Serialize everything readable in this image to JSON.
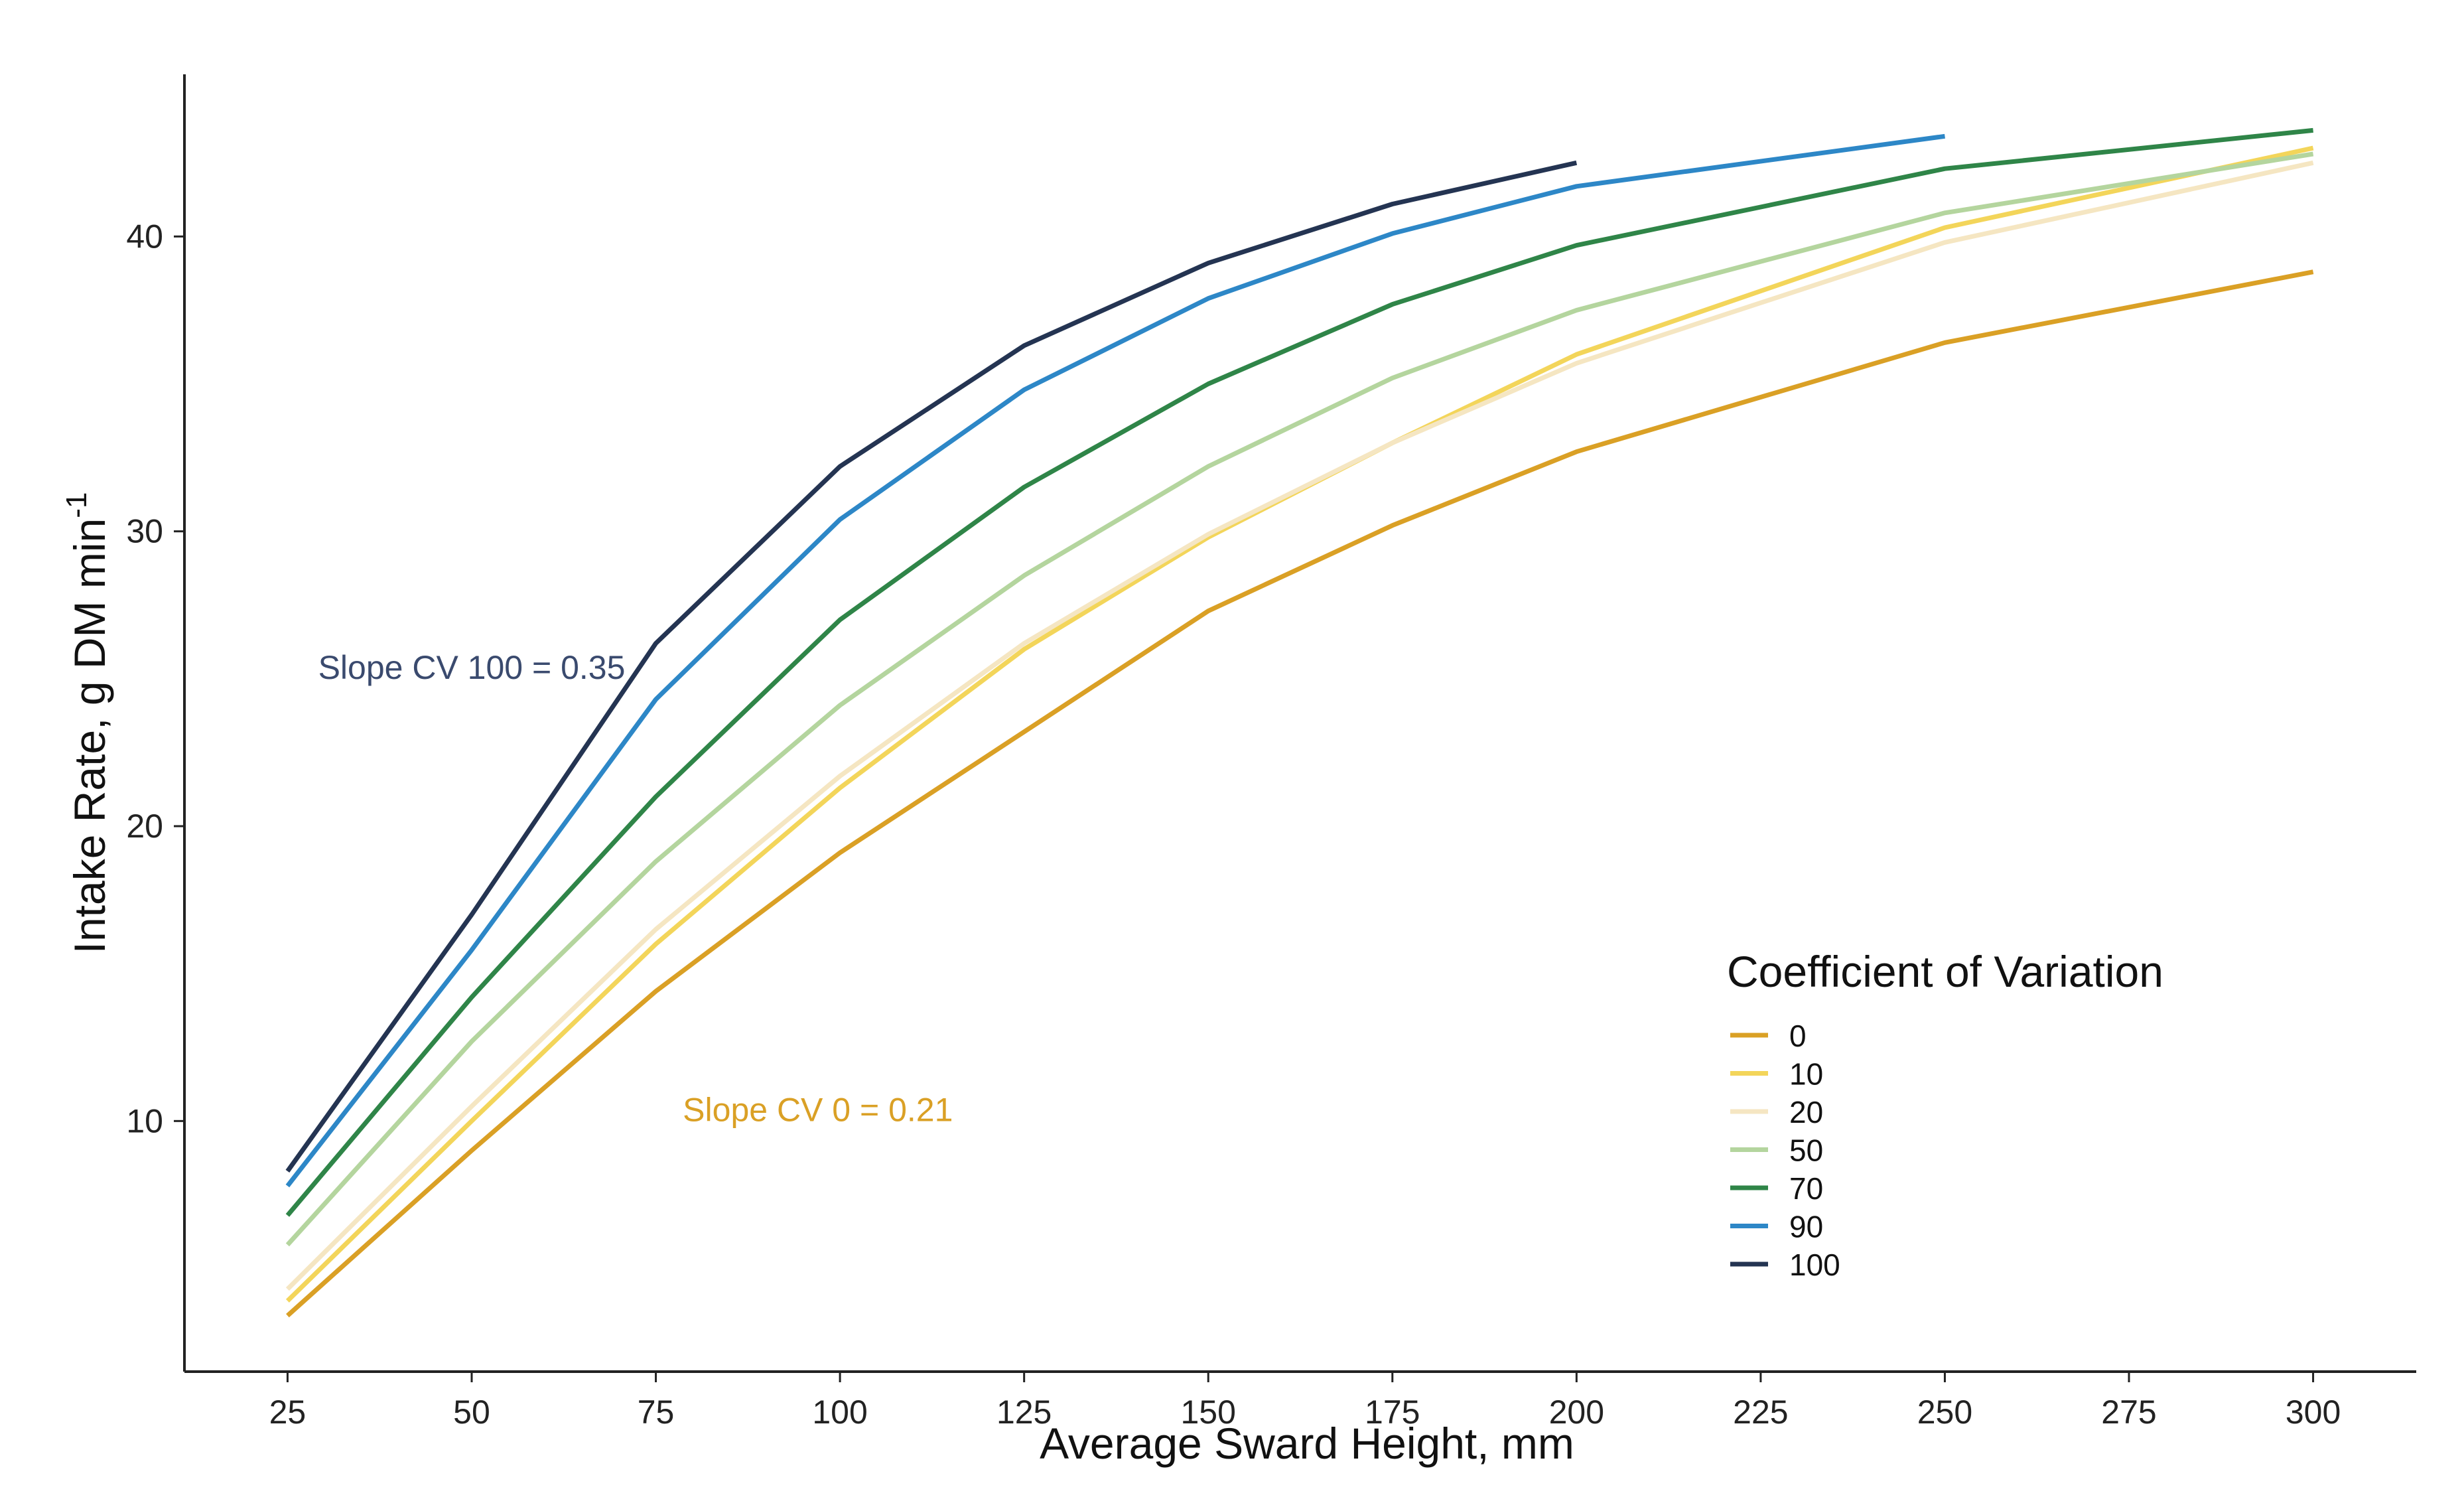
{
  "chart_data": {
    "type": "line",
    "title": "",
    "xlabel": "Average Sward Height, mm",
    "ylabel": "Intake Rate, g DM min",
    "ylabel_superscript": "-1",
    "xlim": [
      11,
      314
    ],
    "ylim": [
      1.5,
      45.5
    ],
    "x_ticks": [
      25,
      50,
      75,
      100,
      125,
      150,
      175,
      200,
      225,
      250,
      275,
      300
    ],
    "y_ticks": [
      10,
      20,
      30,
      40
    ],
    "grid": false,
    "legend": {
      "title": "Coefficient of Variation",
      "position": "bottom-right"
    },
    "series": [
      {
        "name": "0",
        "color": "#DAA025",
        "points": [
          [
            25,
            3.4
          ],
          [
            50,
            9.0
          ],
          [
            75,
            14.4
          ],
          [
            100,
            19.1
          ],
          [
            125,
            23.2
          ],
          [
            150,
            27.3
          ],
          [
            175,
            30.2
          ],
          [
            200,
            32.7
          ],
          [
            250,
            36.4
          ],
          [
            300,
            38.8
          ]
        ]
      },
      {
        "name": "10",
        "color": "#F3D55A",
        "points": [
          [
            25,
            3.9
          ],
          [
            50,
            10.0
          ],
          [
            75,
            16.0
          ],
          [
            100,
            21.3
          ],
          [
            125,
            26.0
          ],
          [
            150,
            29.8
          ],
          [
            175,
            33.0
          ],
          [
            200,
            36.0
          ],
          [
            250,
            40.3
          ],
          [
            300,
            43.0
          ]
        ]
      },
      {
        "name": "20",
        "color": "#F5E6C2",
        "points": [
          [
            25,
            4.3
          ],
          [
            50,
            10.5
          ],
          [
            75,
            16.5
          ],
          [
            100,
            21.7
          ],
          [
            125,
            26.2
          ],
          [
            150,
            29.9
          ],
          [
            175,
            33.0
          ],
          [
            200,
            35.7
          ],
          [
            250,
            39.8
          ],
          [
            300,
            42.5
          ]
        ]
      },
      {
        "name": "50",
        "color": "#B4D59E",
        "points": [
          [
            25,
            5.8
          ],
          [
            50,
            12.7
          ],
          [
            75,
            18.8
          ],
          [
            100,
            24.1
          ],
          [
            125,
            28.5
          ],
          [
            150,
            32.2
          ],
          [
            175,
            35.2
          ],
          [
            200,
            37.5
          ],
          [
            250,
            40.8
          ],
          [
            300,
            42.8
          ]
        ]
      },
      {
        "name": "70",
        "color": "#2F8548",
        "points": [
          [
            25,
            6.8
          ],
          [
            50,
            14.2
          ],
          [
            75,
            21.0
          ],
          [
            100,
            27.0
          ],
          [
            125,
            31.5
          ],
          [
            150,
            35.0
          ],
          [
            175,
            37.7
          ],
          [
            200,
            39.7
          ],
          [
            250,
            42.3
          ],
          [
            300,
            43.6
          ]
        ]
      },
      {
        "name": "90",
        "color": "#2D87C7",
        "points": [
          [
            25,
            7.8
          ],
          [
            50,
            15.8
          ],
          [
            75,
            24.3
          ],
          [
            100,
            30.4
          ],
          [
            125,
            34.8
          ],
          [
            150,
            37.9
          ],
          [
            175,
            40.1
          ],
          [
            200,
            41.7
          ],
          [
            250,
            43.4
          ]
        ]
      },
      {
        "name": "100",
        "color": "#243452",
        "points": [
          [
            25,
            8.3
          ],
          [
            50,
            17.0
          ],
          [
            75,
            26.2
          ],
          [
            100,
            32.2
          ],
          [
            125,
            36.3
          ],
          [
            150,
            39.1
          ],
          [
            175,
            41.1
          ],
          [
            200,
            42.5
          ]
        ]
      }
    ],
    "annotations": [
      {
        "text": "Slope CV 100 = 0.35",
        "x": 50,
        "y": 25.0,
        "color": "#3A4A6E"
      },
      {
        "text": "Slope CV 0 = 0.21",
        "x": 97,
        "y": 10.0,
        "color": "#DAA025"
      }
    ]
  }
}
